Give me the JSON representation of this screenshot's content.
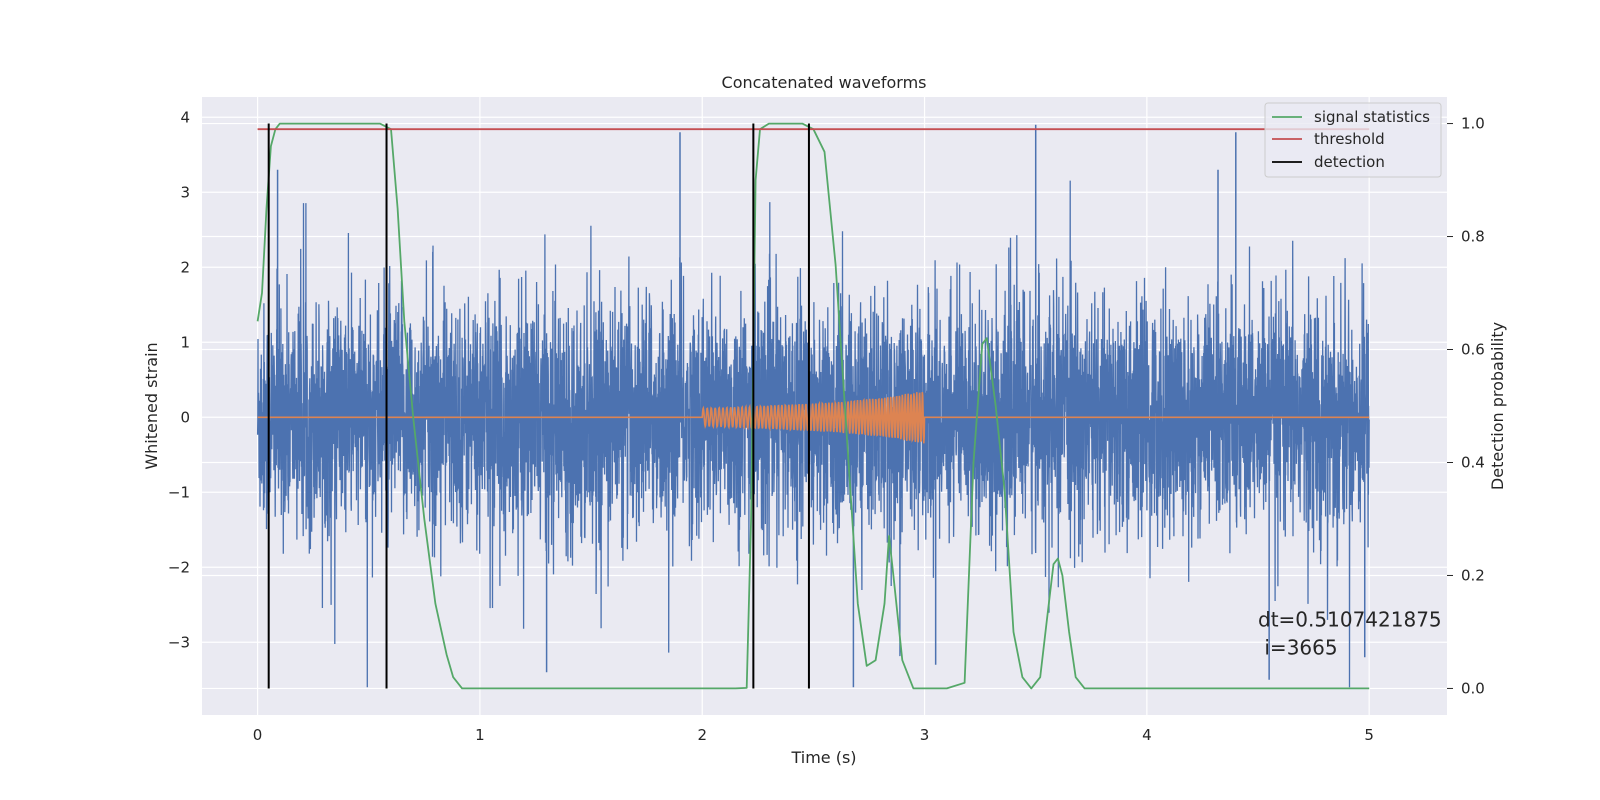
{
  "chart_data": {
    "type": "line",
    "title": "Concatenated waveforms",
    "xlabel": "Time (s)",
    "ylabel": "Whitened strain",
    "y2label": "Detection probability",
    "xlim": [
      -0.25,
      5.35
    ],
    "ylim": [
      -3.97,
      4.27
    ],
    "y2lim": [
      -0.047,
      1.047
    ],
    "xticks": [
      0,
      1,
      2,
      3,
      4,
      5
    ],
    "xtick_labels": [
      "0",
      "1",
      "2",
      "3",
      "4",
      "5"
    ],
    "yticks": [
      -3,
      -2,
      -1,
      0,
      1,
      2,
      3,
      4
    ],
    "ytick_labels": [
      "−3",
      "−2",
      "−1",
      "0",
      "1",
      "2",
      "3",
      "4"
    ],
    "y2ticks": [
      0.0,
      0.2,
      0.4,
      0.6,
      0.8,
      1.0
    ],
    "y2tick_labels": [
      "0.0",
      "0.2",
      "0.4",
      "0.6",
      "0.8",
      "1.0"
    ],
    "grid": true,
    "legend_position": "top-right",
    "colors": {
      "strain": "#4c72b0",
      "injection": "#dd8452",
      "signal_statistics": "#55a868",
      "threshold": "#c44e52",
      "detection": "#000000",
      "background": "#eaeaf2",
      "grid": "#ffffff"
    },
    "series": [
      {
        "name": "",
        "axis": "left",
        "kind": "noise",
        "x_range": [
          0,
          5
        ],
        "approx_envelope": [
          -3.6,
          3.9
        ],
        "peaks": [
          {
            "x": 0.09,
            "y": 3.3
          },
          {
            "x": 1.9,
            "y": 3.8
          },
          {
            "x": 3.5,
            "y": 3.9
          },
          {
            "x": 4.32,
            "y": 3.3
          },
          {
            "x": 4.4,
            "y": 3.8
          },
          {
            "x": 1.3,
            "y": -3.4
          },
          {
            "x": 2.68,
            "y": -3.6
          },
          {
            "x": 3.05,
            "y": -3.3
          },
          {
            "x": 4.55,
            "y": -3.5
          },
          {
            "x": 4.98,
            "y": -3.2
          }
        ]
      },
      {
        "name": "",
        "axis": "left",
        "kind": "injection",
        "x": [
          0,
          2.0,
          2.2,
          2.4,
          2.6,
          2.8,
          3.0,
          3.01,
          5.0
        ],
        "amplitude": [
          0,
          0.12,
          0.14,
          0.17,
          0.2,
          0.26,
          0.35,
          0,
          0
        ]
      },
      {
        "name": "signal statistics",
        "axis": "right",
        "x": [
          0.0,
          0.02,
          0.04,
          0.06,
          0.08,
          0.1,
          0.15,
          0.5,
          0.55,
          0.6,
          0.63,
          0.66,
          0.7,
          0.75,
          0.8,
          0.85,
          0.88,
          0.92,
          1.0,
          1.8,
          2.15,
          2.2,
          2.22,
          2.24,
          2.26,
          2.3,
          2.45,
          2.5,
          2.55,
          2.6,
          2.65,
          2.7,
          2.74,
          2.78,
          2.82,
          2.84,
          2.86,
          2.9,
          2.95,
          3.0,
          3.1,
          3.18,
          3.22,
          3.26,
          3.28,
          3.32,
          3.36,
          3.4,
          3.44,
          3.48,
          3.52,
          3.55,
          3.58,
          3.6,
          3.62,
          3.65,
          3.68,
          3.72,
          3.8,
          5.0
        ],
        "y": [
          0.65,
          0.7,
          0.85,
          0.96,
          0.99,
          1.0,
          1.0,
          1.0,
          1.0,
          0.99,
          0.85,
          0.65,
          0.48,
          0.3,
          0.15,
          0.06,
          0.02,
          0.0,
          0.0,
          0.0,
          0.0,
          0.001,
          0.3,
          0.9,
          0.99,
          1.0,
          1.0,
          0.99,
          0.95,
          0.75,
          0.45,
          0.15,
          0.04,
          0.05,
          0.15,
          0.27,
          0.2,
          0.05,
          0.0,
          0.0,
          0.0,
          0.01,
          0.4,
          0.61,
          0.62,
          0.5,
          0.35,
          0.1,
          0.02,
          0.0,
          0.02,
          0.12,
          0.22,
          0.23,
          0.2,
          0.1,
          0.02,
          0.0,
          0.0,
          0.0
        ]
      },
      {
        "name": "threshold",
        "axis": "right",
        "x": [
          0,
          5
        ],
        "y": [
          0.99,
          0.99
        ]
      },
      {
        "name": "detection",
        "axis": "right",
        "kind": "vlines",
        "x": [
          0.05,
          0.58,
          2.23,
          2.48
        ],
        "y_range": [
          0,
          1.0
        ]
      }
    ],
    "legend": [
      "signal statistics",
      "threshold",
      "detection"
    ],
    "annotation": {
      "line1": "dt=0.5107421875",
      "line2": " i=3665",
      "x": 4.5,
      "y": 0.11
    }
  }
}
